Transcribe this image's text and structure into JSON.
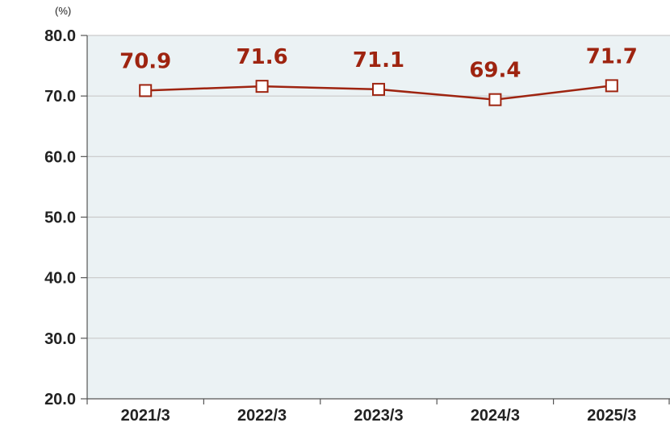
{
  "chart_data": {
    "type": "line",
    "unit": "(%)",
    "categories": [
      "2021/3",
      "2022/3",
      "2023/3",
      "2024/3",
      "2025/3"
    ],
    "series": [
      {
        "values": [
          70.9,
          71.6,
          71.1,
          69.4,
          71.7
        ]
      }
    ],
    "data_labels": [
      "70.9",
      "71.6",
      "71.1",
      "69.4",
      "71.7"
    ],
    "yticks": [
      "80.0",
      "70.0",
      "60.0",
      "50.0",
      "40.0",
      "30.0",
      "20.0"
    ],
    "ylim": [
      20,
      80
    ],
    "grid": true,
    "colors": {
      "series": "#9e2410",
      "plot_background": "#ebf2f4",
      "grid": "#c9c9c9",
      "axis": "#555555"
    }
  }
}
